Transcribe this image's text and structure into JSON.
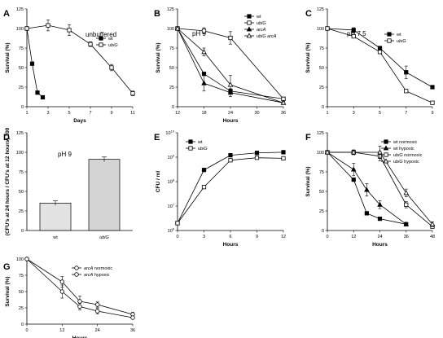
{
  "chart_data": [
    {
      "panel": "A",
      "type": "line",
      "annotation": "unbuffered",
      "xlabel": "Days",
      "ylabel": "Survival (%)",
      "xlim": [
        1,
        11
      ],
      "ylim": [
        0,
        125
      ],
      "xticks": [
        1,
        3,
        5,
        7,
        9,
        11
      ],
      "yticks": [
        0,
        25,
        50,
        75,
        100,
        125
      ],
      "legend_position": "top-right",
      "series": [
        {
          "name": "wt",
          "marker": "square-filled",
          "points": [
            [
              1,
              100
            ],
            [
              1.5,
              55
            ],
            [
              2,
              18
            ],
            [
              2.5,
              12
            ]
          ]
        },
        {
          "name": "ubiG",
          "marker": "square-open",
          "points": [
            [
              1,
              100
            ],
            [
              3,
              104
            ],
            [
              5,
              98
            ],
            [
              7,
              80
            ],
            [
              9,
              50
            ],
            [
              11,
              17
            ]
          ],
          "err": [
            0,
            7,
            7,
            3,
            4,
            3
          ]
        }
      ]
    },
    {
      "panel": "B",
      "type": "line",
      "annotation": "pH 9",
      "xlabel": "Hours",
      "ylabel": "Survival (%)",
      "xlim": [
        12,
        36
      ],
      "ylim": [
        0,
        125
      ],
      "xticks": [
        12,
        18,
        24,
        30,
        36
      ],
      "yticks": [
        0,
        25,
        50,
        75,
        100,
        125
      ],
      "legend_position": "top-right",
      "series": [
        {
          "name": "wt",
          "marker": "square-filled",
          "points": [
            [
              12,
              100
            ],
            [
              18,
              42
            ],
            [
              24,
              20
            ],
            [
              36,
              10
            ]
          ]
        },
        {
          "name": "ubiG",
          "marker": "square-open",
          "points": [
            [
              12,
              100
            ],
            [
              18,
              97
            ],
            [
              24,
              88
            ],
            [
              36,
              10
            ]
          ],
          "err": [
            0,
            4,
            8,
            2
          ]
        },
        {
          "name": "arcA",
          "marker": "triangle-filled",
          "points": [
            [
              12,
              100
            ],
            [
              18,
              30
            ],
            [
              24,
              18
            ],
            [
              36,
              5
            ]
          ],
          "err": [
            0,
            10,
            5,
            2
          ]
        },
        {
          "name": "ubiG arcA",
          "marker": "triangle-open",
          "points": [
            [
              12,
              100
            ],
            [
              18,
              70
            ],
            [
              24,
              28
            ],
            [
              36,
              5
            ]
          ],
          "err": [
            0,
            5,
            12,
            2
          ]
        }
      ]
    },
    {
      "panel": "C",
      "type": "line",
      "annotation": "pH 7.5",
      "xlabel": "",
      "ylabel": "Survival (%)",
      "xlim": [
        1,
        9
      ],
      "ylim": [
        0,
        125
      ],
      "xticks": [
        1,
        3,
        5,
        7,
        9
      ],
      "yticks": [
        0,
        25,
        50,
        75,
        100,
        125
      ],
      "legend_position": "top-right",
      "series": [
        {
          "name": "wt",
          "marker": "square-filled",
          "points": [
            [
              1,
              100
            ],
            [
              3,
              98
            ],
            [
              5,
              75
            ],
            [
              7,
              44
            ],
            [
              9,
              25
            ]
          ],
          "err": [
            0,
            3,
            2,
            8,
            2
          ]
        },
        {
          "name": "ubiG",
          "marker": "square-open",
          "points": [
            [
              1,
              100
            ],
            [
              3,
              90
            ],
            [
              5,
              70
            ],
            [
              7,
              20
            ],
            [
              9,
              5
            ]
          ],
          "err": [
            0,
            2,
            2,
            2,
            2
          ]
        }
      ]
    },
    {
      "panel": "D",
      "type": "bar",
      "annotation": "pH 9",
      "ylabel": "(CFU's at 24 hours / CFU's at 12 hours) 100",
      "ylim": [
        0,
        125
      ],
      "yticks": [
        0,
        25,
        50,
        75,
        100,
        125
      ],
      "categories": [
        "wt",
        "ubiG"
      ],
      "values": [
        35,
        91
      ],
      "err": [
        3,
        3
      ]
    },
    {
      "panel": "E",
      "type": "line",
      "xlabel": "Hours",
      "ylabel": "CFU / ml",
      "xlim": [
        0,
        12
      ],
      "ylim_log10": [
        6,
        10
      ],
      "log_scale": true,
      "xticks": [
        0,
        3,
        6,
        9,
        12
      ],
      "ytick_values": [
        1000000,
        10000000,
        100000000,
        1000000000,
        10000000000
      ],
      "ytick_labels": [
        "10",
        "10",
        "10",
        "10",
        "10"
      ],
      "ytick_exponents": [
        "6",
        "7",
        "8",
        "9",
        "10"
      ],
      "legend_position": "top-left",
      "series": [
        {
          "name": "wt",
          "marker": "square-filled",
          "points": [
            [
              0,
              2000000
            ],
            [
              3,
              300000000
            ],
            [
              6,
              1200000000
            ],
            [
              9,
              1500000000
            ],
            [
              12,
              1600000000
            ]
          ]
        },
        {
          "name": "ubiG",
          "marker": "square-open",
          "points": [
            [
              0,
              2000000
            ],
            [
              3,
              60000000
            ],
            [
              6,
              750000000
            ],
            [
              9,
              950000000
            ],
            [
              12,
              900000000
            ]
          ]
        }
      ]
    },
    {
      "panel": "F",
      "type": "line",
      "xlabel": "Hours",
      "ylabel": "Survival (%)",
      "xlim": [
        0,
        48
      ],
      "ylim": [
        0,
        125
      ],
      "xticks": [
        0,
        12,
        24,
        36,
        48
      ],
      "yticks": [
        0,
        25,
        50,
        75,
        100,
        125
      ],
      "legend_position": "top-right",
      "series": [
        {
          "name": "wt normoxic",
          "marker": "square-filled",
          "points": [
            [
              0,
              100
            ],
            [
              12,
              65
            ],
            [
              18,
              22
            ],
            [
              24,
              15
            ],
            [
              36,
              8
            ]
          ]
        },
        {
          "name": "wt hypoxic",
          "marker": "triangle-filled",
          "points": [
            [
              0,
              100
            ],
            [
              12,
              78
            ],
            [
              18,
              52
            ],
            [
              24,
              33
            ],
            [
              36,
              8
            ]
          ],
          "err": [
            0,
            8,
            8,
            5,
            2
          ]
        },
        {
          "name": "ubiG normoxic",
          "marker": "square-open",
          "points": [
            [
              0,
              100
            ],
            [
              12,
              100
            ],
            [
              24,
              95
            ],
            [
              36,
              33
            ],
            [
              48,
              5
            ]
          ],
          "err": [
            0,
            3,
            6,
            4,
            2
          ]
        },
        {
          "name": "ubiG hypoxic",
          "marker": "triangle-open",
          "points": [
            [
              0,
              100
            ],
            [
              12,
              100
            ],
            [
              24,
              100
            ],
            [
              36,
              48
            ],
            [
              48,
              8
            ]
          ],
          "err": [
            0,
            3,
            8,
            5,
            3
          ]
        }
      ]
    },
    {
      "panel": "G",
      "type": "line",
      "xlabel": "Hours",
      "ylabel": "Survival (%)",
      "xlim": [
        0,
        36
      ],
      "ylim": [
        0,
        100
      ],
      "xticks": [
        0,
        12,
        24,
        36
      ],
      "yticks": [
        0,
        25,
        50,
        75,
        100
      ],
      "legend_position": "top-right",
      "series": [
        {
          "name": "arcA normoxic",
          "marker": "circle-open",
          "points": [
            [
              0,
              100
            ],
            [
              12,
              65
            ],
            [
              18,
              35
            ],
            [
              24,
              30
            ],
            [
              36,
              15
            ]
          ],
          "err": [
            0,
            8,
            8,
            4,
            3
          ]
        },
        {
          "name": "arcA hypoxic",
          "marker": "circle-open",
          "points": [
            [
              0,
              100
            ],
            [
              12,
              50
            ],
            [
              18,
              27
            ],
            [
              24,
              20
            ],
            [
              36,
              10
            ]
          ],
          "err": [
            0,
            10,
            5,
            4,
            2
          ]
        }
      ]
    }
  ]
}
